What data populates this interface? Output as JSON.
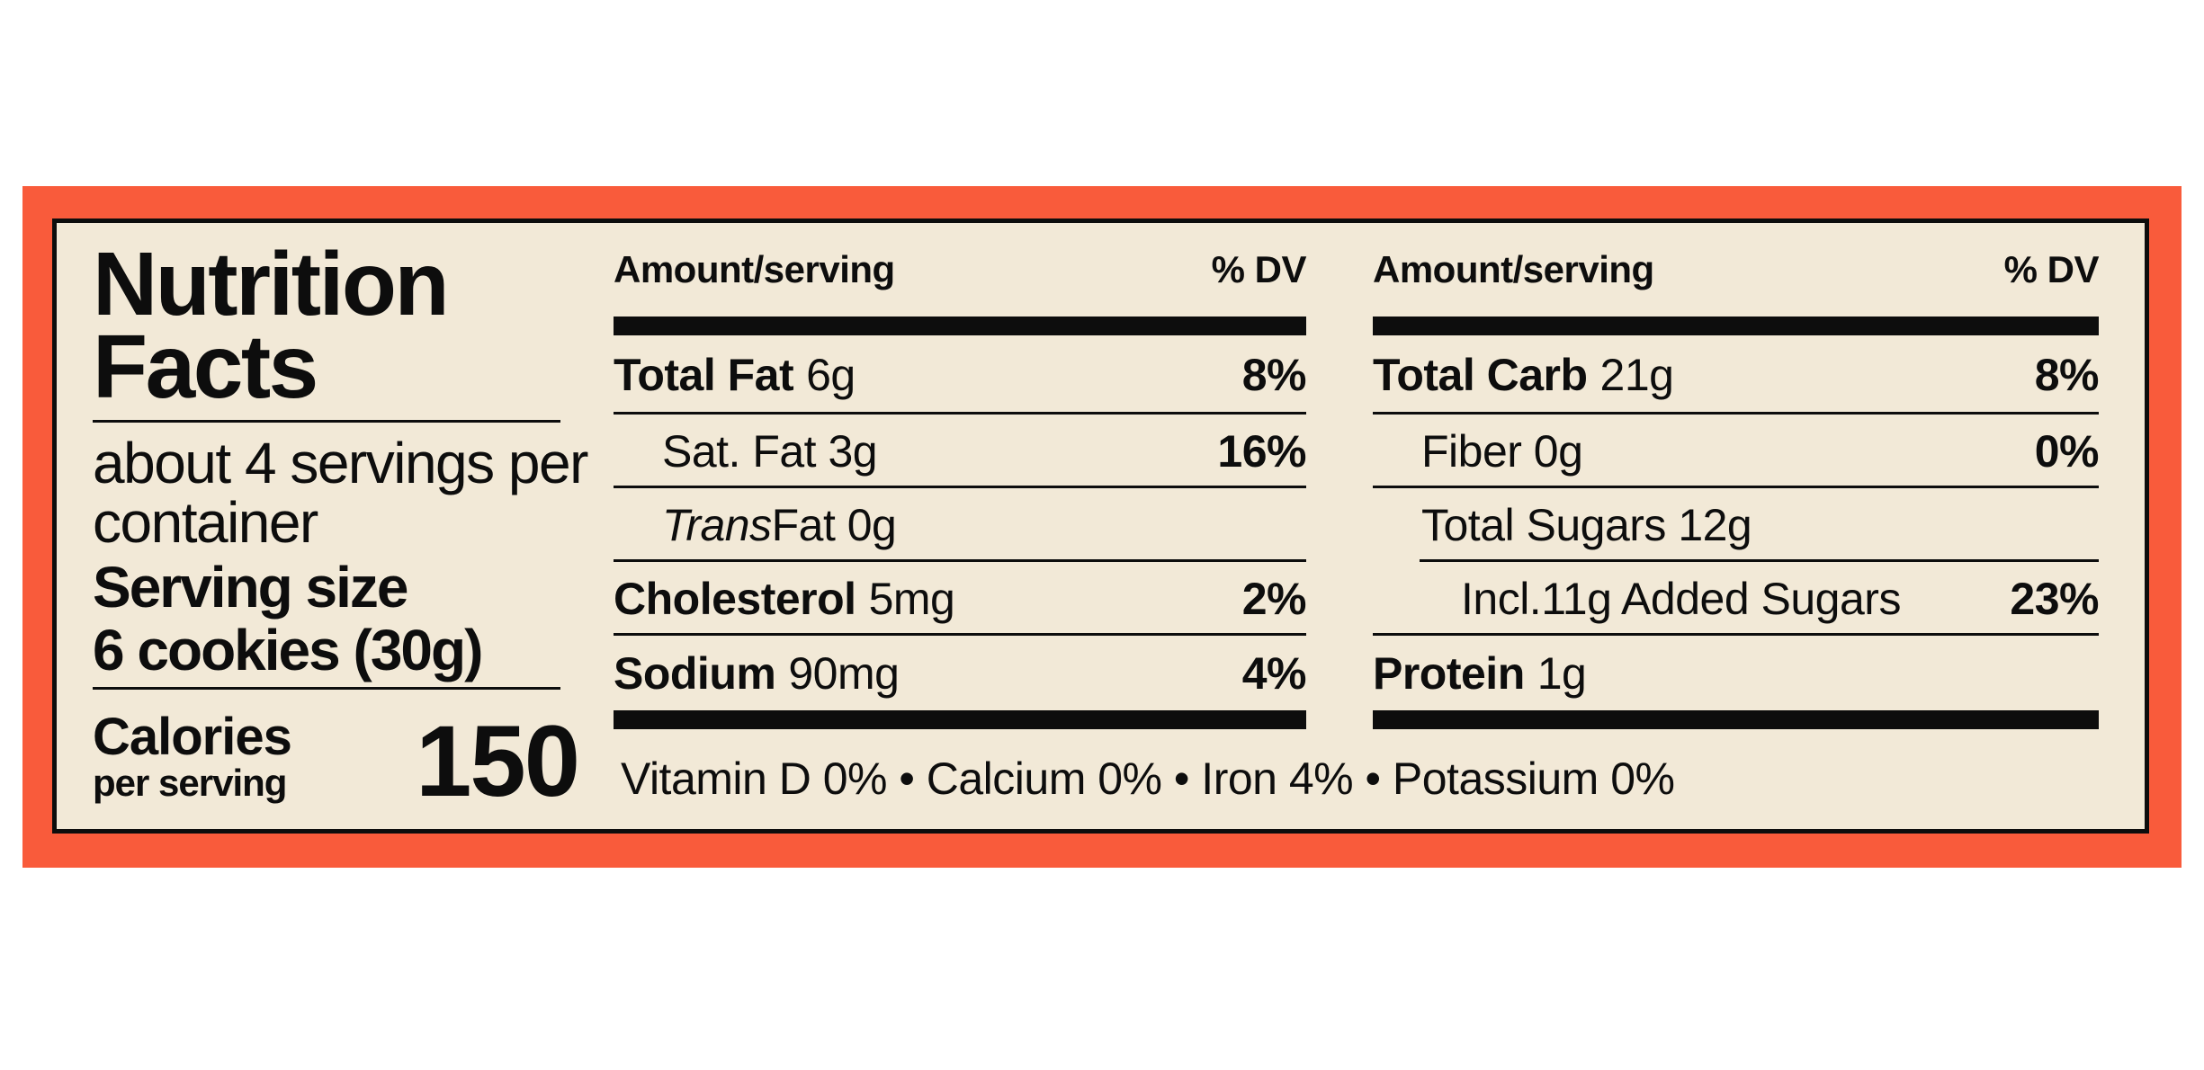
{
  "label": {
    "title_line1": "Nutrition",
    "title_line2": "Facts",
    "servings_per_container": "about 4 servings per container",
    "serving_size_label": "Serving size",
    "serving_size_value": "6 cookies (30g)",
    "calories_label": "Calories",
    "calories_sublabel": "per serving",
    "calories_value": "150",
    "columns": [
      {
        "header_left": "Amount/serving",
        "header_right": "% DV",
        "rows": [
          {
            "bold": "Total Fat",
            "amount": "6g",
            "dv": "8%"
          },
          {
            "plain": "Sat. Fat 3g",
            "dv": "16%"
          },
          {
            "italic": "Trans",
            "plain": " Fat 0g"
          },
          {
            "bold": "Cholesterol",
            "amount": "5mg",
            "dv": "2%"
          },
          {
            "bold": "Sodium",
            "amount": "90mg",
            "dv": "4%"
          }
        ]
      },
      {
        "header_left": "Amount/serving",
        "header_right": "% DV",
        "rows": [
          {
            "bold": "Total Carb",
            "amount": "21g",
            "dv": "8%"
          },
          {
            "plain": "Fiber 0g",
            "dv": "0%"
          },
          {
            "plain": "Total Sugars 12g"
          },
          {
            "plain": "Incl.11g Added Sugars",
            "dv": "23%"
          },
          {
            "bold": "Protein",
            "amount": "1g"
          }
        ]
      }
    ],
    "micronutrients": "Vitamin D 0% • Calcium 0% • Iron 4% • Potassium 0%",
    "colors": {
      "frame": "#F95B3B",
      "label_bg": "#F2E9D7",
      "ink": "#0D0D0D"
    }
  }
}
